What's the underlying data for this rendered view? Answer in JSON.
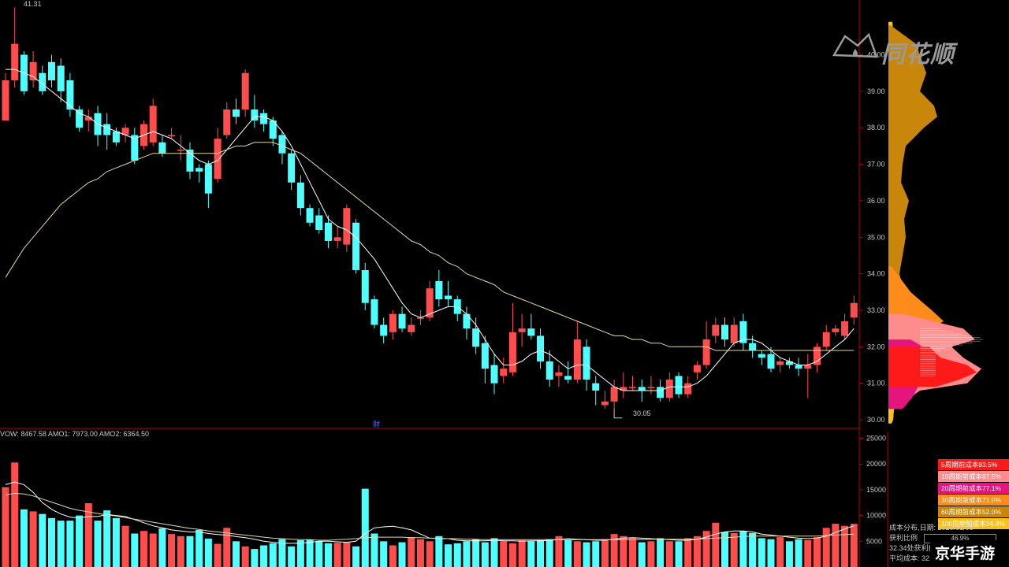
{
  "top_label": "41.31",
  "min_label": "30.05",
  "finance_label": "财",
  "indicator_header": "VOW: 8467.58 AMO1: 7973.00 AMO2: 6364.50",
  "logo_text": "同花顺",
  "watermark": "京华手游",
  "legend": [
    {
      "label": "5周期前成本93.5%",
      "color": "#ff1a1a"
    },
    {
      "label": "10周期前成本87.5%",
      "color": "#ff8c8c"
    },
    {
      "label": "20周期前成本77.1%",
      "color": "#e6157e"
    },
    {
      "label": "30周期前成本71.0%",
      "color": "#ff8c1a"
    },
    {
      "label": "60周期前成本52.0%",
      "color": "#c8860a"
    },
    {
      "label": "100周期前成本24.8%",
      "color": "#ffc01a"
    }
  ],
  "stats": {
    "dist_label": "成本分布,日期:",
    "dist_date": "2020/01/06",
    "profit_label": "获利比例",
    "profit_value": "46.9%",
    "profit_line": "32.34处获利盘:",
    "avg_cost": "平均成本: 32.79元"
  },
  "chart_data": [
    {
      "type": "candlestick",
      "y_ticks": [
        "40.00",
        "39.00",
        "38.00",
        "37.00",
        "36.00",
        "35.00",
        "34.00",
        "33.00",
        "32.00",
        "31.00",
        "30.00"
      ],
      "ylim": [
        29.85,
        41.5
      ],
      "candles": [
        [
          38.2,
          39.3,
          39.5,
          38.2
        ],
        [
          39.3,
          40.3,
          41.3,
          39.1
        ],
        [
          40.0,
          39.0,
          40.1,
          38.9
        ],
        [
          39.3,
          39.8,
          40.1,
          39.1
        ],
        [
          39.5,
          39.0,
          39.7,
          38.9
        ],
        [
          39.8,
          39.3,
          40.0,
          39.1
        ],
        [
          39.7,
          39.0,
          39.9,
          38.7
        ],
        [
          39.3,
          38.5,
          39.5,
          38.3
        ],
        [
          38.5,
          38.0,
          38.6,
          37.9
        ],
        [
          38.2,
          38.3,
          38.5,
          37.9
        ],
        [
          38.4,
          37.8,
          38.6,
          37.5
        ],
        [
          38.1,
          37.8,
          38.4,
          37.4
        ],
        [
          37.9,
          37.6,
          38.0,
          37.5
        ],
        [
          37.8,
          38.0,
          38.1,
          37.6
        ],
        [
          37.8,
          37.1,
          38.0,
          37.0
        ],
        [
          37.5,
          38.1,
          38.2,
          37.4
        ],
        [
          37.6,
          38.6,
          38.8,
          37.5
        ],
        [
          37.6,
          37.3,
          37.8,
          37.2
        ],
        [
          37.8,
          37.8,
          38.0,
          37.7
        ],
        [
          37.4,
          37.4,
          37.8,
          37.1
        ],
        [
          37.4,
          36.8,
          37.6,
          36.6
        ],
        [
          36.9,
          36.8,
          37.0,
          36.5
        ],
        [
          37.0,
          36.2,
          37.1,
          35.8
        ],
        [
          36.6,
          37.7,
          38.0,
          36.5
        ],
        [
          37.8,
          38.5,
          38.7,
          37.7
        ],
        [
          38.5,
          38.3,
          38.8,
          38.1
        ],
        [
          38.5,
          39.5,
          39.6,
          38.3
        ],
        [
          38.5,
          38.2,
          38.9,
          38.0
        ],
        [
          38.4,
          38.1,
          38.5,
          37.9
        ],
        [
          38.2,
          37.7,
          38.3,
          37.5
        ],
        [
          37.8,
          37.3,
          37.9,
          37.0
        ],
        [
          37.3,
          36.5,
          37.4,
          36.3
        ],
        [
          36.5,
          35.8,
          36.7,
          35.6
        ],
        [
          35.8,
          35.4,
          35.9,
          35.3
        ],
        [
          35.6,
          35.2,
          35.8,
          35.1
        ],
        [
          35.4,
          34.9,
          35.6,
          34.7
        ],
        [
          34.9,
          35.0,
          35.3,
          34.7
        ],
        [
          34.8,
          35.8,
          35.9,
          34.6
        ],
        [
          35.4,
          34.1,
          35.5,
          34.0
        ],
        [
          34.1,
          33.2,
          34.3,
          33.0
        ],
        [
          33.3,
          32.6,
          33.4,
          32.5
        ],
        [
          32.6,
          32.3,
          32.8,
          32.1
        ],
        [
          32.4,
          32.9,
          33.0,
          32.2
        ],
        [
          32.9,
          32.5,
          33.1,
          32.4
        ],
        [
          32.4,
          32.6,
          32.8,
          32.3
        ],
        [
          32.8,
          32.8,
          33.0,
          32.6
        ],
        [
          32.8,
          33.6,
          33.8,
          32.7
        ],
        [
          33.8,
          33.3,
          34.1,
          33.1
        ],
        [
          33.4,
          33.3,
          33.8,
          33.1
        ],
        [
          33.3,
          32.9,
          33.4,
          32.7
        ],
        [
          32.9,
          32.5,
          33.1,
          32.2
        ],
        [
          32.5,
          32.0,
          32.8,
          31.8
        ],
        [
          32.1,
          31.4,
          32.3,
          31.0
        ],
        [
          31.5,
          31.0,
          31.8,
          30.7
        ],
        [
          31.2,
          31.4,
          31.7,
          31.0
        ],
        [
          31.3,
          32.4,
          33.2,
          31.2
        ],
        [
          32.4,
          32.5,
          32.9,
          32.0
        ],
        [
          32.5,
          32.3,
          32.9,
          32.2
        ],
        [
          32.3,
          31.6,
          32.5,
          31.4
        ],
        [
          31.6,
          31.1,
          31.9,
          30.9
        ],
        [
          31.2,
          31.3,
          31.5,
          30.9
        ],
        [
          31.2,
          31.1,
          31.6,
          31.0
        ],
        [
          31.1,
          32.2,
          32.7,
          31.0
        ],
        [
          32.0,
          31.1,
          32.2,
          30.8
        ],
        [
          31.0,
          30.8,
          31.2,
          30.4
        ],
        [
          30.4,
          30.5,
          30.8,
          30.3
        ],
        [
          30.5,
          30.9,
          31.1,
          30.3
        ],
        [
          30.8,
          30.9,
          31.3,
          30.6
        ],
        [
          30.9,
          30.9,
          31.2,
          30.8
        ],
        [
          30.9,
          30.8,
          31.1,
          30.5
        ],
        [
          30.9,
          30.9,
          31.2,
          30.7
        ],
        [
          30.9,
          30.6,
          31.1,
          30.5
        ],
        [
          30.6,
          31.1,
          31.3,
          30.5
        ],
        [
          31.2,
          30.7,
          31.3,
          30.6
        ],
        [
          30.7,
          31.0,
          31.2,
          30.6
        ],
        [
          31.3,
          31.5,
          31.6,
          31.1
        ],
        [
          31.5,
          32.2,
          32.7,
          31.4
        ],
        [
          32.3,
          32.6,
          32.8,
          32.1
        ],
        [
          32.6,
          32.2,
          32.8,
          32.0
        ],
        [
          32.1,
          32.6,
          32.8,
          32.0
        ],
        [
          32.7,
          32.1,
          32.9,
          31.9
        ],
        [
          32.1,
          31.9,
          32.3,
          31.7
        ],
        [
          31.8,
          31.7,
          31.9,
          31.5
        ],
        [
          31.8,
          31.4,
          32.0,
          31.3
        ],
        [
          31.5,
          31.6,
          31.7,
          31.3
        ],
        [
          31.6,
          31.5,
          31.7,
          31.4
        ],
        [
          31.5,
          31.4,
          31.7,
          31.2
        ],
        [
          31.4,
          31.5,
          31.8,
          30.6
        ],
        [
          31.5,
          32.0,
          32.1,
          31.3
        ],
        [
          32.0,
          32.4,
          32.6,
          31.9
        ],
        [
          32.4,
          32.5,
          32.6,
          32.3
        ],
        [
          32.3,
          32.7,
          32.9,
          32.2
        ],
        [
          32.8,
          33.2,
          33.4,
          32.6
        ]
      ],
      "ma_short": [
        39.6,
        39.6,
        39.5,
        39.4,
        39.2,
        39.0,
        38.8,
        38.6,
        38.4,
        38.3,
        38.1,
        38.0,
        37.9,
        37.8,
        37.7,
        37.8,
        37.9,
        37.8,
        37.7,
        37.5,
        37.3,
        37.1,
        37.0,
        37.1,
        37.4,
        37.7,
        38.0,
        38.3,
        38.3,
        38.2,
        37.9,
        37.5,
        37.0,
        36.5,
        36.0,
        35.5,
        35.3,
        35.2,
        35.0,
        34.7,
        34.4,
        34.0,
        33.6,
        33.2,
        32.9,
        32.8,
        32.9,
        33.0,
        33.1,
        33.1,
        32.9,
        32.6,
        32.2,
        31.8,
        31.5,
        31.5,
        31.6,
        31.8,
        31.9,
        31.8,
        31.6,
        31.4,
        31.5,
        31.5,
        31.3,
        31.1,
        30.9,
        30.8,
        30.8,
        30.8,
        30.8,
        30.8,
        30.9,
        30.9,
        30.9,
        31.0,
        31.2,
        31.5,
        31.8,
        32.1,
        32.2,
        32.2,
        32.1,
        31.9,
        31.7,
        31.6,
        31.5,
        31.5,
        31.6,
        31.8,
        32.0,
        32.2,
        32.5
      ],
      "ma_long": [
        33.9,
        34.3,
        34.7,
        35.0,
        35.3,
        35.6,
        35.9,
        36.1,
        36.3,
        36.5,
        36.6,
        36.8,
        36.9,
        37.0,
        37.1,
        37.2,
        37.3,
        37.3,
        37.3,
        37.3,
        37.3,
        37.3,
        37.3,
        37.3,
        37.4,
        37.5,
        37.5,
        37.6,
        37.6,
        37.6,
        37.5,
        37.4,
        37.3,
        37.1,
        36.9,
        36.7,
        36.5,
        36.3,
        36.1,
        35.9,
        35.7,
        35.5,
        35.3,
        35.1,
        34.9,
        34.8,
        34.6,
        34.5,
        34.3,
        34.2,
        34.0,
        33.9,
        33.8,
        33.7,
        33.5,
        33.4,
        33.3,
        33.2,
        33.1,
        33.0,
        32.9,
        32.8,
        32.7,
        32.6,
        32.5,
        32.4,
        32.3,
        32.3,
        32.2,
        32.2,
        32.1,
        32.1,
        32.0,
        32.0,
        32.0,
        32.0,
        32.0,
        31.9,
        31.9,
        31.9,
        31.9,
        31.9,
        31.9,
        31.9,
        31.9,
        31.9,
        31.9,
        31.9,
        31.9,
        31.9,
        31.9,
        31.9,
        31.9
      ]
    },
    {
      "type": "bar",
      "y_ticks": [
        "25000",
        "20000",
        "15000",
        "10000",
        "5000"
      ],
      "ylim": [
        0,
        26000
      ],
      "volumes": [
        15500,
        20300,
        11200,
        10800,
        10300,
        9500,
        9000,
        9000,
        10000,
        12400,
        9000,
        11000,
        9500,
        8000,
        6500,
        7000,
        6500,
        7500,
        6400,
        6000,
        6000,
        7200,
        5500,
        4500,
        7600,
        5000,
        4000,
        3500,
        4200,
        4600,
        5400,
        4000,
        5200,
        5300,
        5000,
        4600,
        4700,
        4800,
        4000,
        15200,
        6500,
        5000,
        4200,
        4800,
        5800,
        5400,
        5000,
        6000,
        4400,
        4600,
        5000,
        5400,
        4800,
        5600,
        5000,
        4600,
        5200,
        5000,
        5200,
        5400,
        6000,
        5200,
        5000,
        4800,
        5000,
        5400,
        6400,
        6000,
        5600,
        4800,
        5000,
        5600,
        5000,
        5000,
        5600,
        6000,
        7000,
        8600,
        6800,
        6600,
        7000,
        6600,
        5600,
        5400,
        5800,
        5000,
        5400,
        5200,
        5800,
        7600,
        8400,
        8000,
        8400
      ],
      "ma_short": [
        16000,
        16500,
        16000,
        14500,
        12500,
        11200,
        10300,
        9700,
        9500,
        9800,
        9800,
        10200,
        10000,
        9800,
        9200,
        8600,
        8000,
        7600,
        7200,
        7000,
        6800,
        6800,
        6500,
        6300,
        6200,
        5900,
        5700,
        5400,
        5000,
        4800,
        4600,
        4600,
        4600,
        4800,
        5000,
        5000,
        4900,
        4800,
        5000,
        6500,
        7600,
        7800,
        7900,
        7600,
        7200,
        6400,
        5600,
        5500,
        5500,
        5200,
        5100,
        5100,
        5100,
        5200,
        5100,
        5100,
        5000,
        5100,
        5100,
        5200,
        5300,
        5500,
        5400,
        5300,
        5200,
        5200,
        5400,
        5600,
        5700,
        5600,
        5500,
        5400,
        5300,
        5200,
        5200,
        5400,
        5800,
        6400,
        6800,
        7000,
        7000,
        6800,
        6400,
        6200,
        6000,
        5800,
        5600,
        5500,
        5600,
        6000,
        6700,
        7400,
        8000
      ],
      "ma_long": [
        14000,
        14300,
        14200,
        13800,
        13200,
        12600,
        12000,
        11400,
        11000,
        10700,
        10400,
        10100,
        9900,
        9600,
        9300,
        9000,
        8700,
        8400,
        8100,
        7800,
        7500,
        7300,
        7000,
        6800,
        6600,
        6400,
        6200,
        6000,
        5800,
        5600,
        5500,
        5400,
        5300,
        5300,
        5200,
        5200,
        5300,
        5400,
        5500,
        5700,
        5800,
        5800,
        5800,
        5800,
        5700,
        5700,
        5600,
        5600,
        5500,
        5500,
        5400,
        5400,
        5300,
        5300,
        5300,
        5300,
        5300,
        5300,
        5300,
        5300,
        5300,
        5300,
        5300,
        5300,
        5300,
        5300,
        5300,
        5300,
        5300,
        5300,
        5400,
        5400,
        5400,
        5400,
        5400,
        5400,
        5500,
        5600,
        5700,
        5800,
        5900,
        6000,
        6000,
        6000,
        6000,
        6000,
        6000,
        6000,
        6000,
        6100,
        6200,
        6300,
        6400
      ]
    }
  ],
  "colors": {
    "up": "#ff4d4d",
    "down": "#4dffff",
    "ma_short": "#ffffff",
    "ma_long": "#e6d7a0",
    "axis": "#b30000",
    "text": "#c8c8c8"
  }
}
